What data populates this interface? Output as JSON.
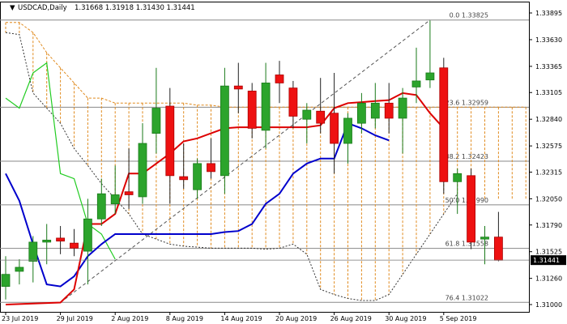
{
  "chart_data": {
    "type": "candlestick",
    "title": {
      "symbol": "USDCAD,Daily",
      "ohlc": "1.31668 1.31918 1.31430 1.31441"
    },
    "price_axis": {
      "min": 1.31,
      "max": 1.33895,
      "ticks": [
        "1.33895",
        "1.33630",
        "1.33365",
        "1.33105",
        "1.32840",
        "1.32575",
        "1.32315",
        "1.32050",
        "1.31790",
        "1.31525",
        "1.31260",
        "1.31000"
      ],
      "current_price": "1.31441"
    },
    "date_axis": {
      "labels": [
        {
          "text": "23 Jul 2019",
          "bar": 0
        },
        {
          "text": "29 Jul 2019",
          "bar": 4
        },
        {
          "text": "2 Aug 2019",
          "bar": 8
        },
        {
          "text": "8 Aug 2019",
          "bar": 12
        },
        {
          "text": "14 Aug 2019",
          "bar": 16
        },
        {
          "text": "20 Aug 2019",
          "bar": 20
        },
        {
          "text": "26 Aug 2019",
          "bar": 24
        },
        {
          "text": "30 Aug 2019",
          "bar": 28
        },
        {
          "text": "5 Sep 2019",
          "bar": 32
        }
      ]
    },
    "candles": [
      {
        "o": 1.3118,
        "h": 1.3148,
        "l": 1.3105,
        "c": 1.313
      },
      {
        "o": 1.3133,
        "h": 1.3145,
        "l": 1.312,
        "c": 1.3137
      },
      {
        "o": 1.3143,
        "h": 1.3168,
        "l": 1.3122,
        "c": 1.3162
      },
      {
        "o": 1.3162,
        "h": 1.318,
        "l": 1.314,
        "c": 1.3164
      },
      {
        "o": 1.3166,
        "h": 1.3178,
        "l": 1.315,
        "c": 1.3163
      },
      {
        "o": 1.3161,
        "h": 1.3175,
        "l": 1.3148,
        "c": 1.3156
      },
      {
        "o": 1.3153,
        "h": 1.3205,
        "l": 1.312,
        "c": 1.3185
      },
      {
        "o": 1.3185,
        "h": 1.3225,
        "l": 1.3178,
        "c": 1.321
      },
      {
        "o": 1.32,
        "h": 1.3238,
        "l": 1.319,
        "c": 1.3209
      },
      {
        "o": 1.3212,
        "h": 1.3255,
        "l": 1.3195,
        "c": 1.3209
      },
      {
        "o": 1.3207,
        "h": 1.328,
        "l": 1.32,
        "c": 1.326
      },
      {
        "o": 1.327,
        "h": 1.3335,
        "l": 1.325,
        "c": 1.3295
      },
      {
        "o": 1.3297,
        "h": 1.3315,
        "l": 1.32,
        "c": 1.3228
      },
      {
        "o": 1.3227,
        "h": 1.326,
        "l": 1.3215,
        "c": 1.3224
      },
      {
        "o": 1.3214,
        "h": 1.3245,
        "l": 1.3205,
        "c": 1.324
      },
      {
        "o": 1.324,
        "h": 1.3265,
        "l": 1.3225,
        "c": 1.3232
      },
      {
        "o": 1.3228,
        "h": 1.3335,
        "l": 1.321,
        "c": 1.3317
      },
      {
        "o": 1.3317,
        "h": 1.334,
        "l": 1.329,
        "c": 1.3314
      },
      {
        "o": 1.3312,
        "h": 1.332,
        "l": 1.3265,
        "c": 1.3275
      },
      {
        "o": 1.3273,
        "h": 1.334,
        "l": 1.3255,
        "c": 1.332
      },
      {
        "o": 1.3328,
        "h": 1.3342,
        "l": 1.33,
        "c": 1.332
      },
      {
        "o": 1.3315,
        "h": 1.3322,
        "l": 1.3275,
        "c": 1.3287
      },
      {
        "o": 1.3284,
        "h": 1.33,
        "l": 1.326,
        "c": 1.3293
      },
      {
        "o": 1.3292,
        "h": 1.3325,
        "l": 1.327,
        "c": 1.328
      },
      {
        "o": 1.329,
        "h": 1.333,
        "l": 1.323,
        "c": 1.326
      },
      {
        "o": 1.326,
        "h": 1.329,
        "l": 1.324,
        "c": 1.3285
      },
      {
        "o": 1.328,
        "h": 1.331,
        "l": 1.327,
        "c": 1.33
      },
      {
        "o": 1.3285,
        "h": 1.332,
        "l": 1.3275,
        "c": 1.33
      },
      {
        "o": 1.33,
        "h": 1.332,
        "l": 1.327,
        "c": 1.3285
      },
      {
        "o": 1.3285,
        "h": 1.3315,
        "l": 1.325,
        "c": 1.3305
      },
      {
        "o": 1.3316,
        "h": 1.3355,
        "l": 1.33,
        "c": 1.3322
      },
      {
        "o": 1.3323,
        "h": 1.3382,
        "l": 1.3315,
        "c": 1.333
      },
      {
        "o": 1.3335,
        "h": 1.3345,
        "l": 1.321,
        "c": 1.3222
      },
      {
        "o": 1.3222,
        "h": 1.3235,
        "l": 1.319,
        "c": 1.323
      },
      {
        "o": 1.3228,
        "h": 1.3235,
        "l": 1.3155,
        "c": 1.3162
      },
      {
        "o": 1.3165,
        "h": 1.3178,
        "l": 1.314,
        "c": 1.3167
      },
      {
        "o": 1.3167,
        "h": 1.3192,
        "l": 1.3143,
        "c": 1.3144
      }
    ],
    "indicators": {
      "tenkan": [
        [
          0,
          1.31
        ],
        [
          4,
          1.3102
        ],
        [
          5,
          1.3115
        ],
        [
          6,
          1.318
        ],
        [
          7,
          1.318
        ],
        [
          8,
          1.319
        ],
        [
          9,
          1.323
        ],
        [
          10,
          1.323
        ],
        [
          11,
          1.324
        ],
        [
          12,
          1.325
        ],
        [
          13,
          1.3262
        ],
        [
          14,
          1.3265
        ],
        [
          15,
          1.327
        ],
        [
          16,
          1.3275
        ],
        [
          17,
          1.3276
        ],
        [
          18,
          1.3276
        ],
        [
          19,
          1.3276
        ],
        [
          20,
          1.3276
        ],
        [
          21,
          1.3276
        ],
        [
          22,
          1.3276
        ],
        [
          23,
          1.3278
        ],
        [
          24,
          1.3295
        ],
        [
          25,
          1.33
        ],
        [
          26,
          1.3301
        ],
        [
          27,
          1.3302
        ],
        [
          28,
          1.3303
        ],
        [
          29,
          1.331
        ],
        [
          30,
          1.3308
        ],
        [
          31,
          1.329
        ],
        [
          32,
          1.3275
        ]
      ],
      "kijun": [
        [
          0,
          1.323
        ],
        [
          1,
          1.3203
        ],
        [
          2,
          1.316
        ],
        [
          3,
          1.312
        ],
        [
          4,
          1.3118
        ],
        [
          5,
          1.3128
        ],
        [
          6,
          1.3148
        ],
        [
          7,
          1.316
        ],
        [
          8,
          1.317
        ],
        [
          9,
          1.317
        ],
        [
          10,
          1.317
        ],
        [
          11,
          1.317
        ],
        [
          12,
          1.317
        ],
        [
          13,
          1.317
        ],
        [
          14,
          1.317
        ],
        [
          15,
          1.317
        ],
        [
          16,
          1.3172
        ],
        [
          17,
          1.3173
        ],
        [
          18,
          1.318
        ],
        [
          19,
          1.32
        ],
        [
          20,
          1.321
        ],
        [
          21,
          1.323
        ],
        [
          22,
          1.324
        ],
        [
          23,
          1.3245
        ],
        [
          24,
          1.3245
        ],
        [
          25,
          1.328
        ],
        [
          26,
          1.3275
        ],
        [
          27,
          1.3268
        ],
        [
          28,
          1.3263
        ]
      ],
      "chikou": [
        [
          0,
          1.3305
        ],
        [
          1,
          1.3295
        ],
        [
          2,
          1.333
        ],
        [
          3,
          1.334
        ],
        [
          4,
          1.323
        ],
        [
          5,
          1.3225
        ],
        [
          6,
          1.318
        ],
        [
          7,
          1.317
        ],
        [
          8,
          1.3145
        ]
      ],
      "span_a": [
        [
          0,
          1.338
        ],
        [
          1,
          1.338
        ],
        [
          2,
          1.337
        ],
        [
          3,
          1.335
        ],
        [
          4,
          1.3335
        ],
        [
          5,
          1.332
        ],
        [
          6,
          1.3305
        ],
        [
          7,
          1.3305
        ],
        [
          8,
          1.33
        ],
        [
          9,
          1.33
        ],
        [
          10,
          1.33
        ],
        [
          11,
          1.33
        ],
        [
          12,
          1.33
        ],
        [
          13,
          1.33
        ],
        [
          14,
          1.3298
        ],
        [
          15,
          1.3298
        ],
        [
          16,
          1.3296
        ],
        [
          17,
          1.3296
        ],
        [
          18,
          1.3296
        ],
        [
          19,
          1.3296
        ],
        [
          20,
          1.3296
        ],
        [
          21,
          1.3296
        ],
        [
          22,
          1.3296
        ],
        [
          23,
          1.3296
        ],
        [
          24,
          1.3296
        ],
        [
          25,
          1.3296
        ],
        [
          26,
          1.3296
        ],
        [
          27,
          1.3296
        ],
        [
          28,
          1.3296
        ],
        [
          29,
          1.3296
        ],
        [
          30,
          1.3296
        ],
        [
          31,
          1.3296
        ],
        [
          32,
          1.3296
        ],
        [
          33,
          1.3296
        ],
        [
          34,
          1.3296
        ],
        [
          35,
          1.3296
        ],
        [
          36,
          1.3296
        ],
        [
          37,
          1.3296
        ],
        [
          38,
          1.3296
        ]
      ],
      "span_b": [
        [
          0,
          1.337
        ],
        [
          1,
          1.3368
        ],
        [
          2,
          1.331
        ],
        [
          3,
          1.3295
        ],
        [
          4,
          1.328
        ],
        [
          5,
          1.3255
        ],
        [
          6,
          1.3238
        ],
        [
          7,
          1.322
        ],
        [
          8,
          1.3205
        ],
        [
          9,
          1.319
        ],
        [
          10,
          1.317
        ],
        [
          11,
          1.3165
        ],
        [
          12,
          1.316
        ],
        [
          13,
          1.3158
        ],
        [
          14,
          1.3157
        ],
        [
          15,
          1.3156
        ],
        [
          16,
          1.3156
        ],
        [
          17,
          1.3156
        ],
        [
          18,
          1.3156
        ],
        [
          19,
          1.3155
        ],
        [
          20,
          1.3156
        ],
        [
          21,
          1.316
        ],
        [
          22,
          1.315
        ],
        [
          23,
          1.3115
        ],
        [
          24,
          1.311
        ],
        [
          25,
          1.3106
        ],
        [
          26,
          1.3104
        ],
        [
          27,
          1.3104
        ],
        [
          28,
          1.311
        ],
        [
          29,
          1.313
        ],
        [
          30,
          1.315
        ],
        [
          31,
          1.317
        ],
        [
          32,
          1.319
        ],
        [
          33,
          1.321
        ]
      ]
    },
    "fibonacci": [
      {
        "label": "0.0 1.33825",
        "price": 1.33825
      },
      {
        "label": "23.6 1.32959",
        "price": 1.32959
      },
      {
        "label": "38.2 1.32423",
        "price": 1.32423
      },
      {
        "label": "50.0 1.31990",
        "price": 1.3199
      },
      {
        "label": "61.8 1.31558",
        "price": 1.31558
      },
      {
        "label": "76.4 1.31022",
        "price": 1.31022
      }
    ],
    "trendline": {
      "from": [
        4,
        1.3102
      ],
      "to": [
        31,
        1.33825
      ]
    },
    "colors": {
      "bull": "#2ca42c",
      "bear": "#ee1111",
      "tenkan": "#dd0000",
      "kijun": "#0000cc",
      "chikou": "#22cc22",
      "cloud": "#e08a1e",
      "grid": "#cccccc",
      "fib": "#888888",
      "label_bg": "#000000",
      "label_fg": "#ffffff"
    }
  }
}
